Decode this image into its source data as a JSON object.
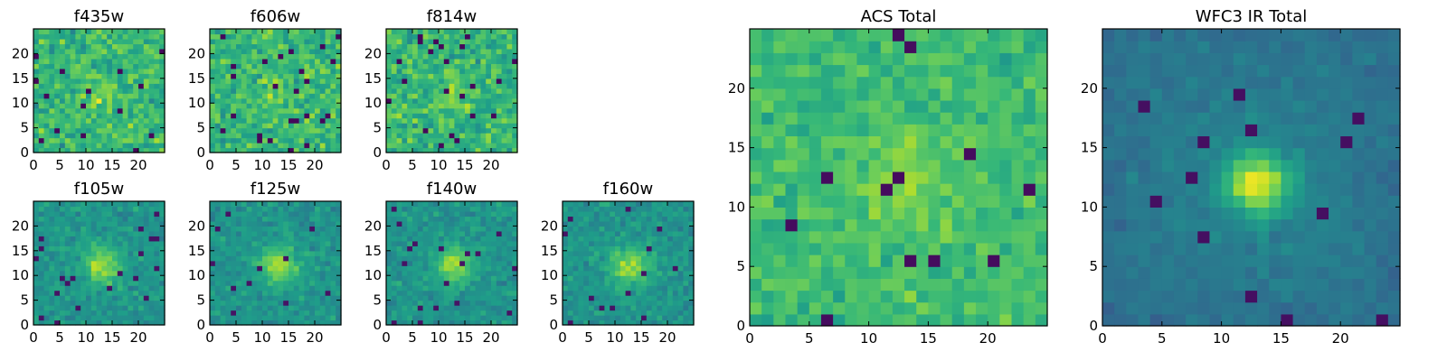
{
  "chart_data": [
    {
      "type": "heatmap",
      "id": "f435w",
      "title": "f435w",
      "shape": [
        25,
        25
      ],
      "profile": "noise",
      "seed": 11,
      "xticks": [
        "0",
        "5",
        "10",
        "15",
        "20"
      ],
      "yticks": [
        "0",
        "5",
        "10",
        "15",
        "20"
      ],
      "xlim": [
        0,
        25
      ],
      "ylim": [
        0,
        25
      ],
      "colormap": "viridis"
    },
    {
      "type": "heatmap",
      "id": "f606w",
      "title": "f606w",
      "shape": [
        25,
        25
      ],
      "profile": "noise",
      "seed": 23,
      "xticks": [
        "0",
        "5",
        "10",
        "15",
        "20"
      ],
      "yticks": [
        "0",
        "5",
        "10",
        "15",
        "20"
      ],
      "xlim": [
        0,
        25
      ],
      "ylim": [
        0,
        25
      ],
      "colormap": "viridis"
    },
    {
      "type": "heatmap",
      "id": "f814w",
      "title": "f814w",
      "shape": [
        25,
        25
      ],
      "profile": "noise",
      "seed": 37,
      "xticks": [
        "0",
        "5",
        "10",
        "15",
        "20"
      ],
      "yticks": [
        "0",
        "5",
        "10",
        "15",
        "20"
      ],
      "xlim": [
        0,
        25
      ],
      "ylim": [
        0,
        25
      ],
      "colormap": "viridis"
    },
    {
      "type": "heatmap",
      "id": "f105w",
      "title": "f105w",
      "shape": [
        25,
        25
      ],
      "profile": "source",
      "seed": 41,
      "xticks": [
        "0",
        "5",
        "10",
        "15",
        "20"
      ],
      "yticks": [
        "0",
        "5",
        "10",
        "15",
        "20"
      ],
      "xlim": [
        0,
        25
      ],
      "ylim": [
        0,
        25
      ],
      "colormap": "viridis"
    },
    {
      "type": "heatmap",
      "id": "f125w",
      "title": "f125w",
      "shape": [
        25,
        25
      ],
      "profile": "source",
      "seed": 53,
      "xticks": [
        "0",
        "5",
        "10",
        "15",
        "20"
      ],
      "yticks": [
        "0",
        "5",
        "10",
        "15",
        "20"
      ],
      "xlim": [
        0,
        25
      ],
      "ylim": [
        0,
        25
      ],
      "colormap": "viridis"
    },
    {
      "type": "heatmap",
      "id": "f140w",
      "title": "f140w",
      "shape": [
        25,
        25
      ],
      "profile": "source",
      "seed": 67,
      "xticks": [
        "0",
        "5",
        "10",
        "15",
        "20"
      ],
      "yticks": [
        "0",
        "5",
        "10",
        "15",
        "20"
      ],
      "xlim": [
        0,
        25
      ],
      "ylim": [
        0,
        25
      ],
      "colormap": "viridis"
    },
    {
      "type": "heatmap",
      "id": "f160w",
      "title": "f160w",
      "shape": [
        25,
        25
      ],
      "profile": "source",
      "seed": 79,
      "xticks": [
        "0",
        "5",
        "10",
        "15",
        "20"
      ],
      "yticks": [
        "0",
        "5",
        "10",
        "15",
        "20"
      ],
      "xlim": [
        0,
        25
      ],
      "ylim": [
        0,
        25
      ],
      "colormap": "viridis"
    },
    {
      "type": "heatmap",
      "id": "acs-total",
      "title": "ACS Total",
      "shape": [
        25,
        25
      ],
      "profile": "acs",
      "seed": 97,
      "xticks": [
        "0",
        "5",
        "10",
        "15",
        "20"
      ],
      "yticks": [
        "0",
        "5",
        "10",
        "15",
        "20"
      ],
      "xlim": [
        0,
        25
      ],
      "ylim": [
        0,
        25
      ],
      "colormap": "viridis"
    },
    {
      "type": "heatmap",
      "id": "wfc3-ir-total",
      "title": "WFC3 IR Total",
      "shape": [
        25,
        25
      ],
      "profile": "ir",
      "seed": 113,
      "xticks": [
        "0",
        "5",
        "10",
        "15",
        "20"
      ],
      "yticks": [
        "0",
        "5",
        "10",
        "15",
        "20"
      ],
      "xlim": [
        0,
        25
      ],
      "ylim": [
        0,
        25
      ],
      "colormap": "viridis"
    }
  ]
}
